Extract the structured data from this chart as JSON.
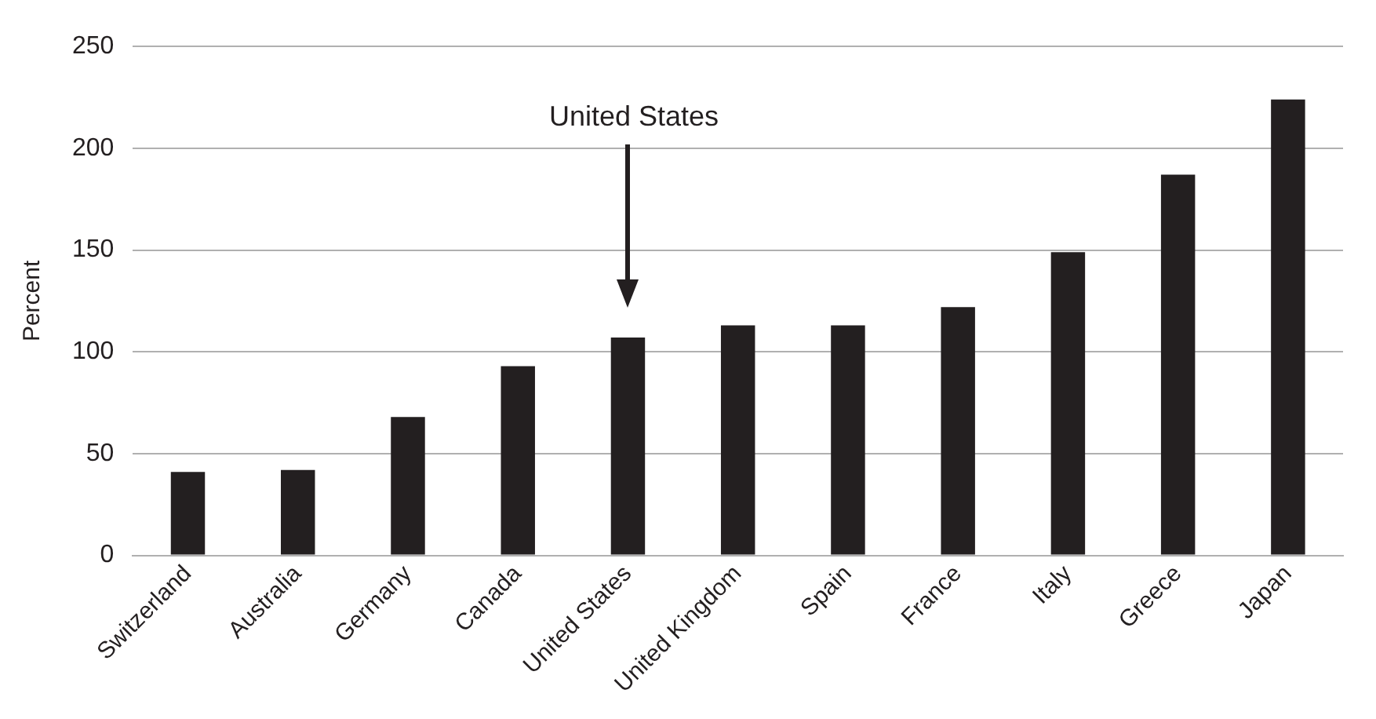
{
  "chart_data": {
    "type": "bar",
    "ylabel": "Percent",
    "categories": [
      "Switzerland",
      "Australia",
      "Germany",
      "Canada",
      "United States",
      "United Kingdom",
      "Spain",
      "France",
      "Italy",
      "Greece",
      "Japan"
    ],
    "values": [
      41,
      42,
      68,
      93,
      107,
      113,
      113,
      122,
      149,
      187,
      224
    ],
    "color": "#231f20",
    "ylim": [
      0,
      250
    ],
    "yticks": [
      0,
      50,
      100,
      150,
      200,
      250
    ],
    "grid": "y",
    "legend": false,
    "annotations": [
      "United States"
    ]
  }
}
